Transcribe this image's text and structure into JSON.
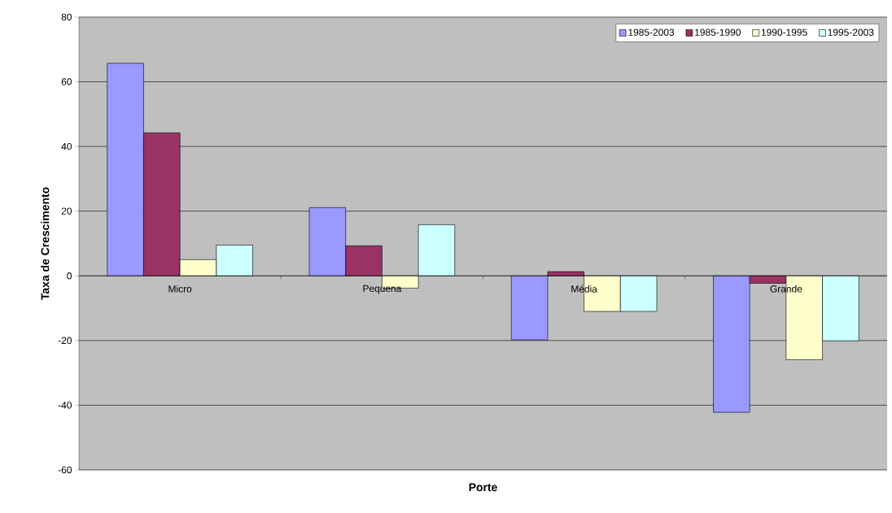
{
  "chart_data": {
    "type": "bar",
    "xlabel": "Porte",
    "ylabel": "Taxa de Crescimento",
    "categories": [
      "Micro",
      "Pequena",
      "Média",
      "Grande"
    ],
    "series": [
      {
        "name": "1985-2003",
        "color": "#9999ff",
        "values": [
          65.7,
          21.1,
          -19.8,
          -42.2
        ]
      },
      {
        "name": "1985-1990",
        "color": "#993366",
        "values": [
          44.2,
          9.3,
          1.3,
          -2.3
        ]
      },
      {
        "name": "1990-1995",
        "color": "#ffffcc",
        "values": [
          5.0,
          -3.8,
          -11.0,
          -25.9
        ]
      },
      {
        "name": "1995-2003",
        "color": "#ccffff",
        "values": [
          9.5,
          15.8,
          -11.0,
          -20.1
        ]
      }
    ],
    "ylim": [
      -60,
      80
    ],
    "yticks": [
      -60,
      -40,
      -20,
      0,
      20,
      40,
      60,
      80
    ],
    "grid": "y",
    "legend": "top right"
  }
}
